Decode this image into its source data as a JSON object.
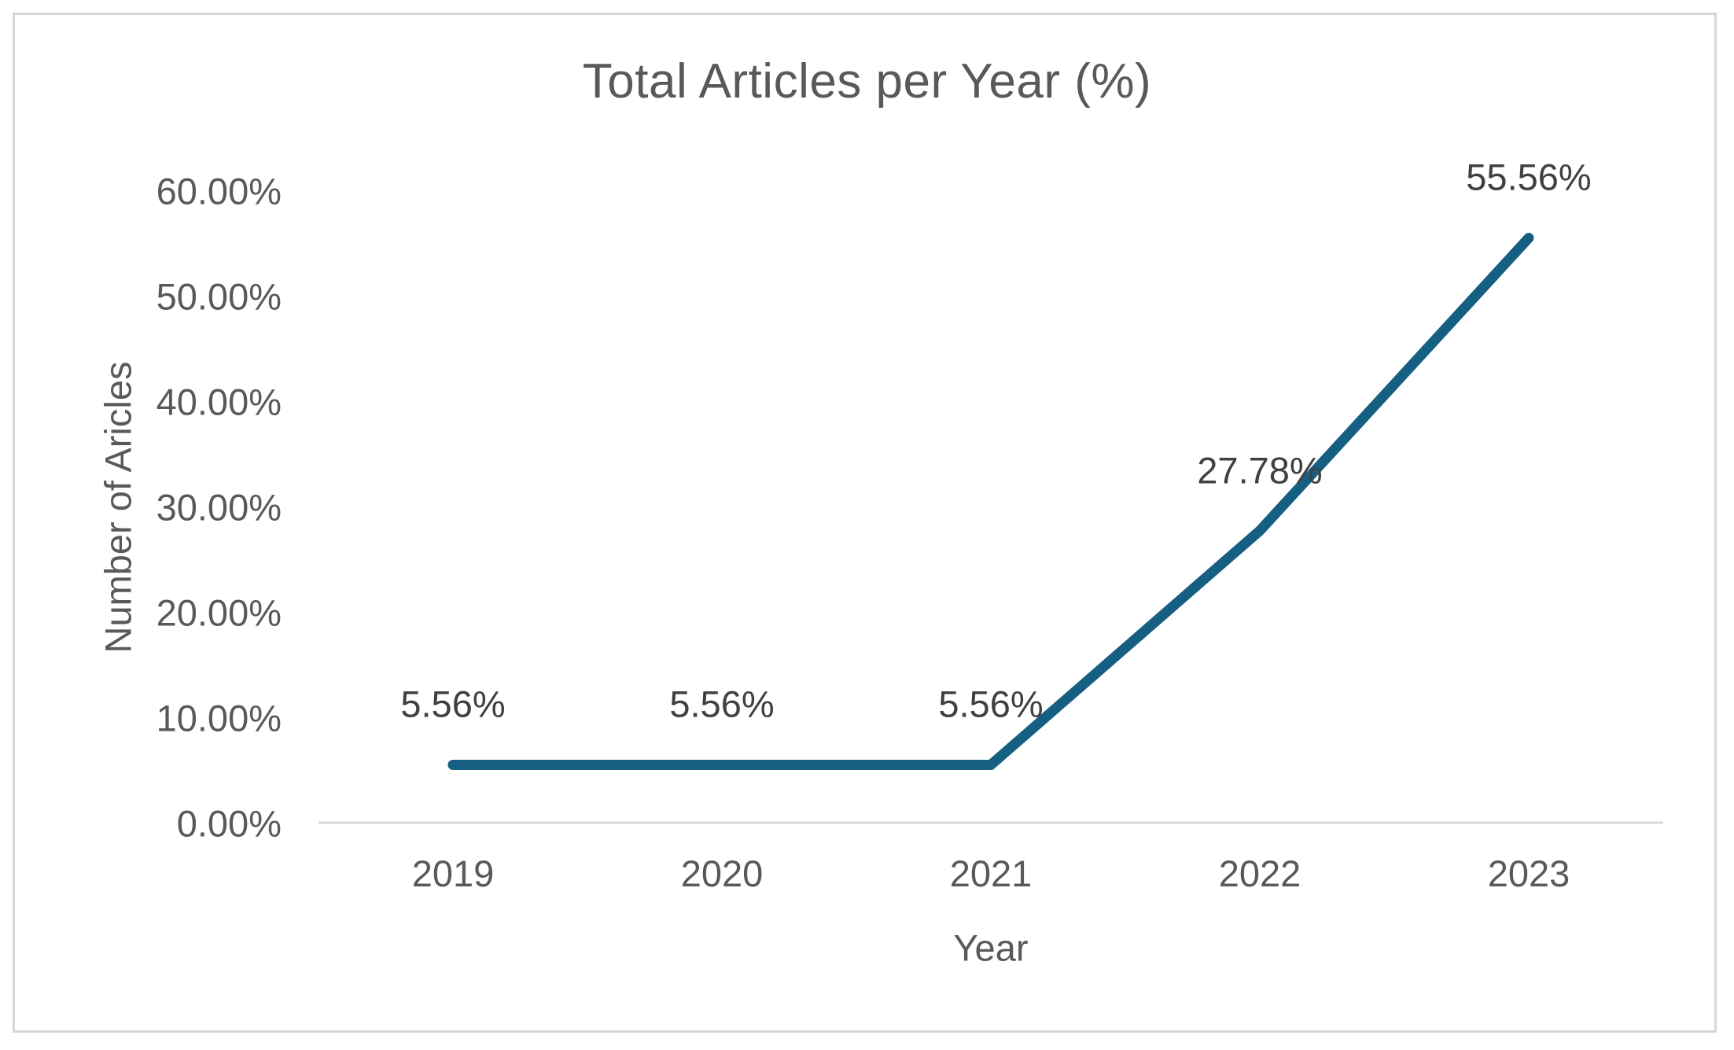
{
  "figure": {
    "background_color": "#ffffff",
    "border_color": "#d6d6d6"
  },
  "chart_data": {
    "type": "line",
    "title": "Total Articles per Year (%)",
    "xlabel": "Year",
    "ylabel": "Number of Aricles",
    "categories": [
      "2019",
      "2020",
      "2021",
      "2022",
      "2023"
    ],
    "series": [
      {
        "name": "Total Articles per Year (%)",
        "values": [
          5.56,
          5.56,
          5.56,
          27.78,
          55.56
        ],
        "data_labels": [
          "5.56%",
          "5.56%",
          "5.56%",
          "27.78%",
          "55.56%"
        ],
        "color": "#156082"
      }
    ],
    "y_ticks": [
      "60.00%",
      "50.00%",
      "40.00%",
      "30.00%",
      "20.00%",
      "10.00%",
      "0.00%"
    ],
    "ylim": [
      0,
      60
    ],
    "grid": "off",
    "legend": "none",
    "axis_line_color": "#d9d9d9",
    "text_color": "#595959",
    "data_label_color": "#404040"
  }
}
